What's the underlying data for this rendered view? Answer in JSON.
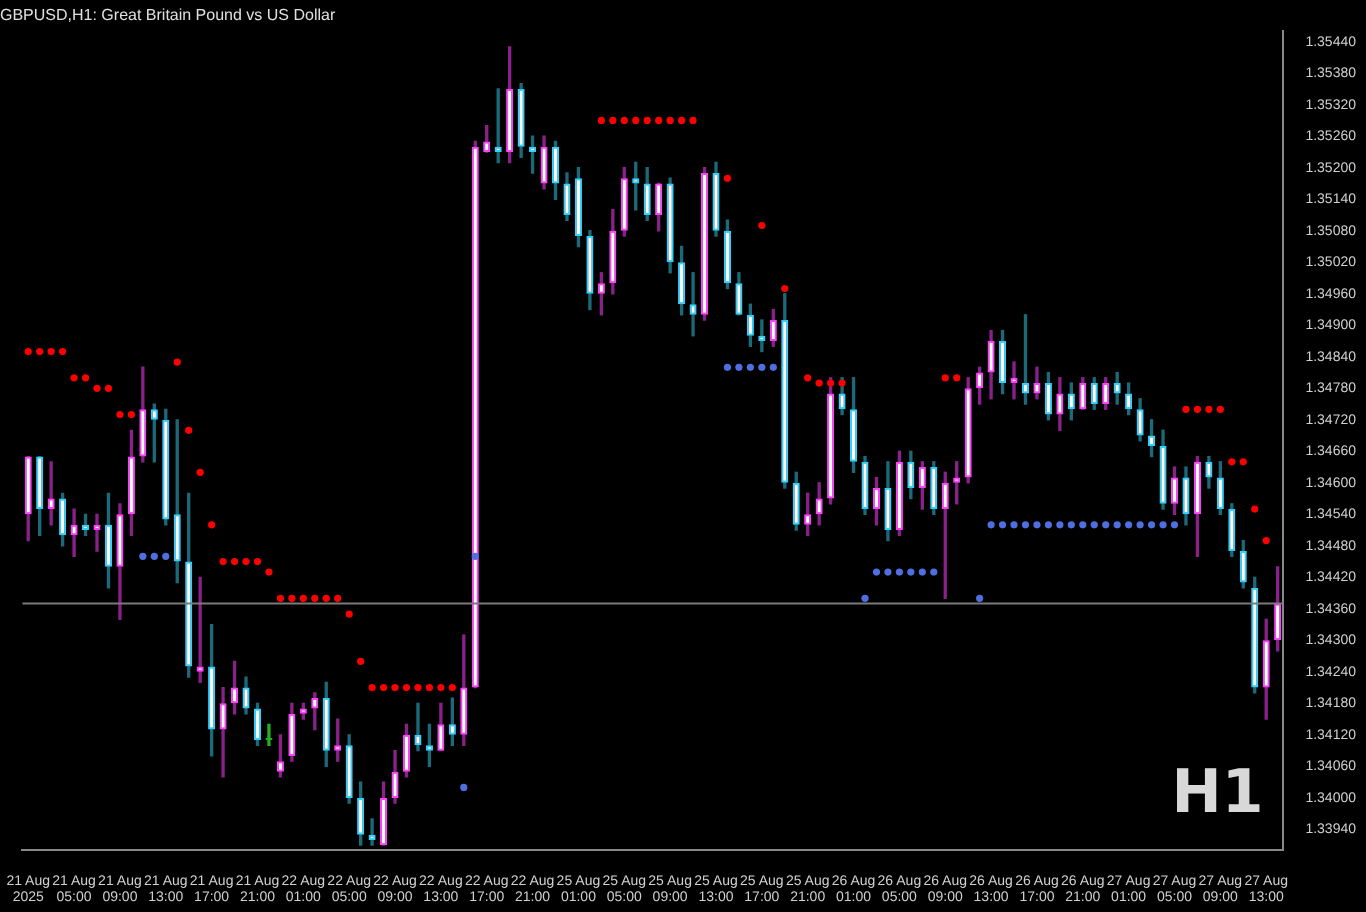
{
  "chart_data": {
    "type": "candlestick",
    "title": "GBPUSD,H1: Great Britain Pound vs US Dollar",
    "categories": [
      "21 Aug 2025",
      null,
      null,
      null,
      "21 Aug 05:00",
      null,
      null,
      null,
      "21 Aug 09:00",
      null,
      null,
      null,
      "21 Aug 13:00",
      null,
      null,
      null,
      "21 Aug 17:00",
      null,
      null,
      null,
      "21 Aug 21:00",
      null,
      null,
      null,
      "22 Aug 01:00",
      null,
      null,
      null,
      "22 Aug 05:00",
      null,
      null,
      null,
      "22 Aug 09:00",
      null,
      null,
      null,
      "22 Aug 13:00",
      null,
      null,
      null,
      "22 Aug 17:00",
      null,
      null,
      null,
      "22 Aug 21:00",
      null,
      null,
      null,
      "25 Aug 01:00",
      null,
      null,
      null,
      "25 Aug 05:00",
      null,
      null,
      null,
      "25 Aug 09:00",
      null,
      null,
      null,
      "25 Aug 13:00",
      null,
      null,
      null,
      "25 Aug 17:00",
      null,
      null,
      null,
      "25 Aug 21:00",
      null,
      null,
      null,
      "26 Aug 01:00",
      null,
      null,
      null,
      "26 Aug 05:00",
      null,
      null,
      null,
      "26 Aug 09:00",
      null,
      null,
      null,
      "26 Aug 13:00",
      null,
      null,
      null,
      "26 Aug 17:00",
      null,
      null,
      null,
      "26 Aug 21:00",
      null,
      null,
      null,
      "27 Aug 01:00",
      null,
      null,
      null,
      "27 Aug 05:00",
      null,
      null,
      null,
      "27 Aug 09:00",
      null,
      null,
      null,
      "27 Aug 13:00",
      null
    ],
    "ohlc": [
      [
        1.3454,
        1.3465,
        1.3449,
        1.3465
      ],
      [
        1.3465,
        1.3465,
        1.345,
        1.3455
      ],
      [
        1.3455,
        1.3464,
        1.3452,
        1.3457
      ],
      [
        1.3457,
        1.3458,
        1.3448,
        1.345
      ],
      [
        1.345,
        1.3455,
        1.3446,
        1.3452
      ],
      [
        1.3452,
        1.3454,
        1.345,
        1.3451
      ],
      [
        1.3451,
        1.3454,
        1.3447,
        1.3452
      ],
      [
        1.3452,
        1.3458,
        1.344,
        1.3444
      ],
      [
        1.3444,
        1.3456,
        1.3434,
        1.3454
      ],
      [
        1.3454,
        1.347,
        1.345,
        1.3465
      ],
      [
        1.3465,
        1.3482,
        1.3464,
        1.3474
      ],
      [
        1.3474,
        1.3475,
        1.3464,
        1.3472
      ],
      [
        1.3472,
        1.3474,
        1.3452,
        1.3453
      ],
      [
        1.3454,
        1.3472,
        1.3441,
        1.3445
      ],
      [
        1.3445,
        1.3458,
        1.3423,
        1.3425
      ],
      [
        1.3424,
        1.3442,
        1.3422,
        1.3425
      ],
      [
        1.3425,
        1.3433,
        1.3408,
        1.3413
      ],
      [
        1.3413,
        1.3421,
        1.3404,
        1.3418
      ],
      [
        1.3418,
        1.3426,
        1.3416,
        1.3421
      ],
      [
        1.3421,
        1.3423,
        1.3416,
        1.3417
      ],
      [
        1.3417,
        1.3418,
        1.341,
        1.3411
      ],
      [
        1.3411,
        1.3414,
        1.341,
        1.3411
      ],
      [
        1.3405,
        1.3412,
        1.3404,
        1.3407
      ],
      [
        1.3408,
        1.3418,
        1.3407,
        1.3416
      ],
      [
        1.3416,
        1.3418,
        1.3415,
        1.3417
      ],
      [
        1.3417,
        1.342,
        1.3413,
        1.3419
      ],
      [
        1.3419,
        1.3422,
        1.3406,
        1.3409
      ],
      [
        1.3409,
        1.3415,
        1.3407,
        1.341
      ],
      [
        1.341,
        1.3412,
        1.3399,
        1.34
      ],
      [
        1.34,
        1.3403,
        1.3391,
        1.3393
      ],
      [
        1.3393,
        1.3396,
        1.3391,
        1.3392
      ],
      [
        1.3391,
        1.3403,
        1.3391,
        1.34
      ],
      [
        1.34,
        1.3409,
        1.3399,
        1.3405
      ],
      [
        1.3405,
        1.3414,
        1.3404,
        1.3412
      ],
      [
        1.3412,
        1.3418,
        1.3409,
        1.341
      ],
      [
        1.341,
        1.3414,
        1.3406,
        1.3409
      ],
      [
        1.3409,
        1.3418,
        1.3409,
        1.3414
      ],
      [
        1.3414,
        1.3419,
        1.341,
        1.3412
      ],
      [
        1.3412,
        1.3431,
        1.341,
        1.3421
      ],
      [
        1.3421,
        1.3525,
        1.3421,
        1.3524
      ],
      [
        1.3523,
        1.3528,
        1.3523,
        1.3525
      ],
      [
        1.3524,
        1.3535,
        1.3521,
        1.3523
      ],
      [
        1.3523,
        1.3543,
        1.3521,
        1.3535
      ],
      [
        1.3535,
        1.3536,
        1.3522,
        1.3524
      ],
      [
        1.3524,
        1.3526,
        1.3519,
        1.3523
      ],
      [
        1.3517,
        1.3526,
        1.3516,
        1.3524
      ],
      [
        1.3524,
        1.3525,
        1.3514,
        1.3517
      ],
      [
        1.3517,
        1.3519,
        1.351,
        1.3511
      ],
      [
        1.3518,
        1.352,
        1.3505,
        1.3507
      ],
      [
        1.3507,
        1.3508,
        1.3493,
        1.3496
      ],
      [
        1.3496,
        1.35,
        1.3492,
        1.3498
      ],
      [
        1.3498,
        1.3512,
        1.3496,
        1.3508
      ],
      [
        1.3508,
        1.352,
        1.3507,
        1.3518
      ],
      [
        1.3518,
        1.3521,
        1.3512,
        1.3517
      ],
      [
        1.3517,
        1.352,
        1.351,
        1.3511
      ],
      [
        1.3511,
        1.3517,
        1.3508,
        1.3517
      ],
      [
        1.3517,
        1.3518,
        1.35,
        1.3502
      ],
      [
        1.3502,
        1.3505,
        1.3492,
        1.3494
      ],
      [
        1.3494,
        1.35,
        1.3488,
        1.3492
      ],
      [
        1.3492,
        1.352,
        1.3491,
        1.3519
      ],
      [
        1.3519,
        1.3521,
        1.3507,
        1.3508
      ],
      [
        1.3508,
        1.351,
        1.3497,
        1.3498
      ],
      [
        1.3498,
        1.35,
        1.3492,
        1.3492
      ],
      [
        1.3492,
        1.3494,
        1.3486,
        1.3488
      ],
      [
        1.3488,
        1.3491,
        1.3485,
        1.3487
      ],
      [
        1.3487,
        1.3493,
        1.3486,
        1.3491
      ],
      [
        1.3491,
        1.3496,
        1.3459,
        1.346
      ],
      [
        1.346,
        1.3462,
        1.3451,
        1.3452
      ],
      [
        1.3452,
        1.3458,
        1.345,
        1.3454
      ],
      [
        1.3454,
        1.346,
        1.3452,
        1.3457
      ],
      [
        1.3457,
        1.348,
        1.3456,
        1.3477
      ],
      [
        1.3477,
        1.348,
        1.3473,
        1.3474
      ],
      [
        1.3474,
        1.348,
        1.3462,
        1.3464
      ],
      [
        1.3464,
        1.3465,
        1.3454,
        1.3455
      ],
      [
        1.3455,
        1.3461,
        1.3452,
        1.3459
      ],
      [
        1.3459,
        1.3464,
        1.3449,
        1.3451
      ],
      [
        1.3451,
        1.3466,
        1.345,
        1.3464
      ],
      [
        1.3464,
        1.3466,
        1.3457,
        1.3459
      ],
      [
        1.3459,
        1.3464,
        1.3455,
        1.3463
      ],
      [
        1.3463,
        1.3464,
        1.3454,
        1.3455
      ],
      [
        1.3455,
        1.3462,
        1.3438,
        1.346
      ],
      [
        1.346,
        1.3464,
        1.3456,
        1.3461
      ],
      [
        1.3461,
        1.348,
        1.346,
        1.3478
      ],
      [
        1.3478,
        1.3482,
        1.3475,
        1.3481
      ],
      [
        1.3481,
        1.3489,
        1.3476,
        1.3487
      ],
      [
        1.3487,
        1.3489,
        1.3477,
        1.3479
      ],
      [
        1.3479,
        1.3483,
        1.3476,
        1.348
      ],
      [
        1.3479,
        1.3492,
        1.3475,
        1.3477
      ],
      [
        1.3477,
        1.3482,
        1.3476,
        1.3479
      ],
      [
        1.3479,
        1.3481,
        1.3472,
        1.3473
      ],
      [
        1.3473,
        1.348,
        1.347,
        1.3477
      ],
      [
        1.3477,
        1.3479,
        1.3472,
        1.3474
      ],
      [
        1.3474,
        1.348,
        1.3474,
        1.3479
      ],
      [
        1.3479,
        1.348,
        1.3474,
        1.3475
      ],
      [
        1.3475,
        1.348,
        1.3474,
        1.3479
      ],
      [
        1.3479,
        1.3481,
        1.3475,
        1.3477
      ],
      [
        1.3477,
        1.3479,
        1.3473,
        1.3474
      ],
      [
        1.3474,
        1.3476,
        1.3468,
        1.3469
      ],
      [
        1.3469,
        1.3472,
        1.3465,
        1.3467
      ],
      [
        1.3467,
        1.347,
        1.3455,
        1.3456
      ],
      [
        1.3456,
        1.3463,
        1.3454,
        1.3461
      ],
      [
        1.3461,
        1.3463,
        1.3452,
        1.3454
      ],
      [
        1.3454,
        1.3465,
        1.3446,
        1.3464
      ],
      [
        1.3464,
        1.3465,
        1.3459,
        1.3461
      ],
      [
        1.3461,
        1.3464,
        1.3454,
        1.3455
      ],
      [
        1.3455,
        1.3456,
        1.3446,
        1.3447
      ],
      [
        1.3447,
        1.3449,
        1.344,
        1.3441
      ],
      [
        1.344,
        1.3442,
        1.342,
        1.3421
      ],
      [
        1.3421,
        1.3434,
        1.3415,
        1.343
      ],
      [
        1.343,
        1.3444,
        1.3428,
        1.3437
      ]
    ],
    "series": [
      {
        "type": "scatter",
        "color": "#ff0000",
        "values": [
          1.3485,
          1.3485,
          1.3485,
          1.3485,
          1.348,
          1.348,
          1.3478,
          1.3478,
          1.3473,
          1.3473,
          null,
          null,
          null,
          1.3483,
          1.347,
          1.3462,
          1.3452,
          1.3445,
          1.3445,
          1.3445,
          1.3445,
          1.3443,
          1.3438,
          1.3438,
          1.3438,
          1.3438,
          1.3438,
          1.3438,
          1.3435,
          1.3426,
          1.3421,
          1.3421,
          1.3421,
          1.3421,
          1.3421,
          1.3421,
          1.3421,
          1.3421,
          null,
          null,
          null,
          null,
          null,
          null,
          null,
          null,
          null,
          null,
          null,
          null,
          1.3529,
          1.3529,
          1.3529,
          1.3529,
          1.3529,
          1.3529,
          1.3529,
          1.3529,
          1.3529,
          null,
          null,
          1.3518,
          null,
          null,
          1.3509,
          null,
          1.3497,
          null,
          1.348,
          1.3479,
          1.3479,
          1.3479,
          null,
          null,
          null,
          null,
          null,
          null,
          null,
          null,
          1.348,
          1.348,
          null,
          null,
          null,
          null,
          null,
          null,
          null,
          null,
          null,
          null,
          null,
          null,
          null,
          null,
          null,
          null,
          null,
          null,
          null,
          1.3474,
          1.3474,
          1.3474,
          1.3474,
          1.3464,
          1.3464,
          1.3455,
          1.3449,
          null
        ]
      },
      {
        "type": "scatter",
        "color": "#4f6fe0",
        "values": [
          null,
          null,
          null,
          null,
          null,
          null,
          null,
          null,
          null,
          null,
          1.3446,
          1.3446,
          1.3446,
          null,
          null,
          null,
          null,
          null,
          null,
          null,
          null,
          null,
          null,
          null,
          null,
          null,
          null,
          null,
          null,
          null,
          null,
          null,
          null,
          null,
          null,
          null,
          null,
          null,
          1.3402,
          1.3446,
          null,
          null,
          null,
          null,
          null,
          null,
          null,
          null,
          null,
          null,
          null,
          null,
          null,
          null,
          null,
          null,
          null,
          null,
          null,
          null,
          null,
          1.3482,
          1.3482,
          1.3482,
          1.3482,
          1.3482,
          null,
          null,
          null,
          null,
          null,
          null,
          null,
          1.3438,
          1.3443,
          1.3443,
          1.3443,
          1.3443,
          1.3443,
          1.3443,
          null,
          null,
          null,
          1.3438,
          1.3452,
          1.3452,
          1.3452,
          1.3452,
          1.3452,
          1.3452,
          1.3452,
          1.3452,
          1.3452,
          1.3452,
          1.3452,
          1.3452,
          1.3452,
          1.3452,
          1.3452,
          1.3452,
          1.3452,
          null,
          null,
          null,
          null,
          null,
          null,
          null,
          null,
          null
        ]
      }
    ],
    "marker": "circle",
    "ylim": [
      1.339,
      1.3546
    ],
    "yticks": [
      {
        "value": 1.3394,
        "label": "1.33940"
      },
      {
        "value": 1.34,
        "label": "1.34000"
      },
      {
        "value": 1.3406,
        "label": "1.34060"
      },
      {
        "value": 1.3412,
        "label": "1.34120"
      },
      {
        "value": 1.3418,
        "label": "1.34180"
      },
      {
        "value": 1.3424,
        "label": "1.34240"
      },
      {
        "value": 1.343,
        "label": "1.34300"
      },
      {
        "value": 1.3436,
        "label": "1.34360"
      },
      {
        "value": 1.3442,
        "label": "1.34420"
      },
      {
        "value": 1.3448,
        "label": "1.34480"
      },
      {
        "value": 1.3454,
        "label": "1.34540"
      },
      {
        "value": 1.346,
        "label": "1.34600"
      },
      {
        "value": 1.3466,
        "label": "1.34660"
      },
      {
        "value": 1.3472,
        "label": "1.34720"
      },
      {
        "value": 1.3478,
        "label": "1.34780"
      },
      {
        "value": 1.3484,
        "label": "1.34840"
      },
      {
        "value": 1.349,
        "label": "1.34900"
      },
      {
        "value": 1.3496,
        "label": "1.34960"
      },
      {
        "value": 1.3502,
        "label": "1.35020"
      },
      {
        "value": 1.3508,
        "label": "1.35080"
      },
      {
        "value": 1.3514,
        "label": "1.35140"
      },
      {
        "value": 1.352,
        "label": "1.35200"
      },
      {
        "value": 1.3526,
        "label": "1.35260"
      },
      {
        "value": 1.3532,
        "label": "1.35320"
      },
      {
        "value": 1.3538,
        "label": "1.35380"
      },
      {
        "value": 1.3544,
        "label": "1.35440"
      }
    ],
    "ref_lines": [
      {
        "axis": "y",
        "value": 1.3437,
        "color": "#7a7a7a"
      }
    ],
    "annotations": [
      "H1"
    ],
    "grid": false,
    "legend": false
  }
}
